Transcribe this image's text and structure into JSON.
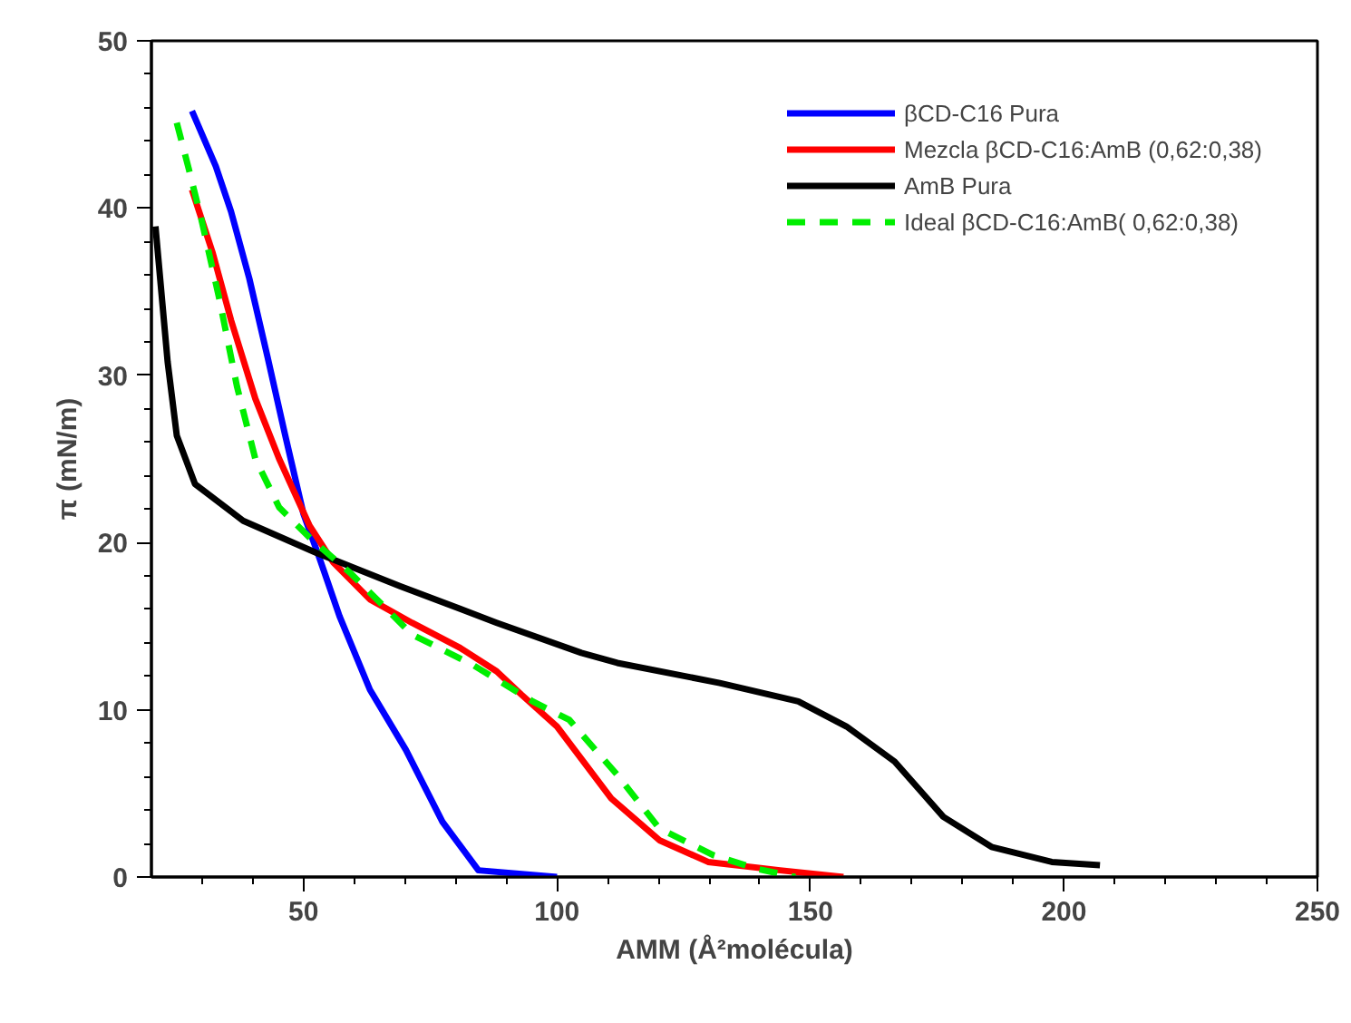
{
  "chart_data": {
    "type": "line",
    "xlabel": "AMM (Å²molécula)",
    "ylabel": "π (mN/m)",
    "xlim": [
      20,
      250
    ],
    "ylim": [
      0,
      50
    ],
    "xticks": [
      50,
      100,
      150,
      200,
      250,
      {
        "value": 30,
        "label": null
      },
      {
        "value": 40,
        "label": null
      },
      {
        "value": 60,
        "label": null
      },
      {
        "value": 70,
        "label": null
      },
      {
        "value": 80,
        "label": null
      },
      {
        "value": 90,
        "label": null
      },
      {
        "value": 110,
        "label": null
      },
      {
        "value": 120,
        "label": null
      },
      {
        "value": 130,
        "label": null
      },
      {
        "value": 140,
        "label": null
      },
      {
        "value": 160,
        "label": null
      },
      {
        "value": 170,
        "label": null
      },
      {
        "value": 180,
        "label": null
      },
      {
        "value": 190,
        "label": null
      },
      {
        "value": 210,
        "label": null
      },
      {
        "value": 220,
        "label": null
      },
      {
        "value": 230,
        "label": null
      },
      {
        "value": 240,
        "label": null
      }
    ],
    "yticks": [
      0,
      10,
      20,
      30,
      40,
      50,
      {
        "value": 2,
        "label": null
      },
      {
        "value": 4,
        "label": null
      },
      {
        "value": 6,
        "label": null
      },
      {
        "value": 8,
        "label": null
      },
      {
        "value": 12,
        "label": null
      },
      {
        "value": 14,
        "label": null
      },
      {
        "value": 16,
        "label": null
      },
      {
        "value": 18,
        "label": null
      },
      {
        "value": 22,
        "label": null
      },
      {
        "value": 24,
        "label": null
      },
      {
        "value": 26,
        "label": null
      },
      {
        "value": 28,
        "label": null
      },
      {
        "value": 32,
        "label": null
      },
      {
        "value": 34,
        "label": null
      },
      {
        "value": 36,
        "label": null
      },
      {
        "value": 38,
        "label": null
      },
      {
        "value": 42,
        "label": null
      },
      {
        "value": 44,
        "label": null
      },
      {
        "value": 46,
        "label": null
      },
      {
        "value": 48,
        "label": null
      }
    ],
    "grid": false,
    "legend": "top right",
    "marker": "none",
    "series": [
      {
        "name": "βCD-C16 Pura",
        "color": "#0000ff",
        "line_style": "solid",
        "x": [
          28.0,
          32.7,
          35.7,
          39.3,
          42.9,
          46.4,
          50.0,
          53.0,
          57.1,
          63.1,
          70.2,
          77.4,
          84.5,
          100.0
        ],
        "values": [
          45.8,
          42.5,
          39.8,
          35.8,
          31.1,
          26.4,
          21.7,
          19.2,
          15.6,
          11.2,
          7.6,
          3.3,
          0.4,
          0.0
        ]
      },
      {
        "name": "Mezcla βCD-C16:AmB (0,62:0,38)",
        "color": "#ff0000",
        "line_style": "solid",
        "x": [
          28.0,
          32.1,
          35.7,
          40.5,
          45.2,
          51.2,
          55.9,
          63.1,
          71.4,
          80.9,
          88.1,
          93.0,
          100.0,
          110.7,
          120.2,
          129.8,
          144.0,
          156.5
        ],
        "values": [
          41.1,
          37.3,
          33.3,
          28.6,
          25.0,
          21.0,
          18.8,
          16.6,
          15.2,
          13.7,
          12.3,
          10.9,
          9.0,
          4.7,
          2.2,
          0.9,
          0.4,
          0.0
        ]
      },
      {
        "name": "AmB Pura",
        "color": "#000000",
        "line_style": "solid",
        "x": [
          20.8,
          23.2,
          25.0,
          28.6,
          38.1,
          52.4,
          69.0,
          88.1,
          104.8,
          111.9,
          132.1,
          147.6,
          157.1,
          166.6,
          176.2,
          185.7,
          197.6,
          207.1
        ],
        "values": [
          38.9,
          30.8,
          26.4,
          23.5,
          21.3,
          19.4,
          17.4,
          15.2,
          13.4,
          12.8,
          11.6,
          10.5,
          9.0,
          6.9,
          3.6,
          1.8,
          0.9,
          0.7
        ]
      },
      {
        "name": "Ideal βCD-C16:AmB( 0,62:0,38)",
        "color": "#00ee00",
        "line_style": "dashed",
        "x": [
          25.0,
          27.4,
          29.8,
          33.3,
          36.9,
          40.5,
          45.2,
          51.2,
          59.5,
          71.4,
          83.3,
          95.2,
          102.4,
          111.9,
          120.2,
          130.9,
          139.3,
          147.0
        ],
        "values": [
          45.1,
          42.3,
          39.4,
          34.7,
          29.3,
          25.0,
          22.1,
          20.3,
          18.1,
          14.5,
          12.7,
          10.5,
          9.4,
          6.1,
          2.9,
          1.3,
          0.5,
          0.0
        ]
      }
    ]
  }
}
